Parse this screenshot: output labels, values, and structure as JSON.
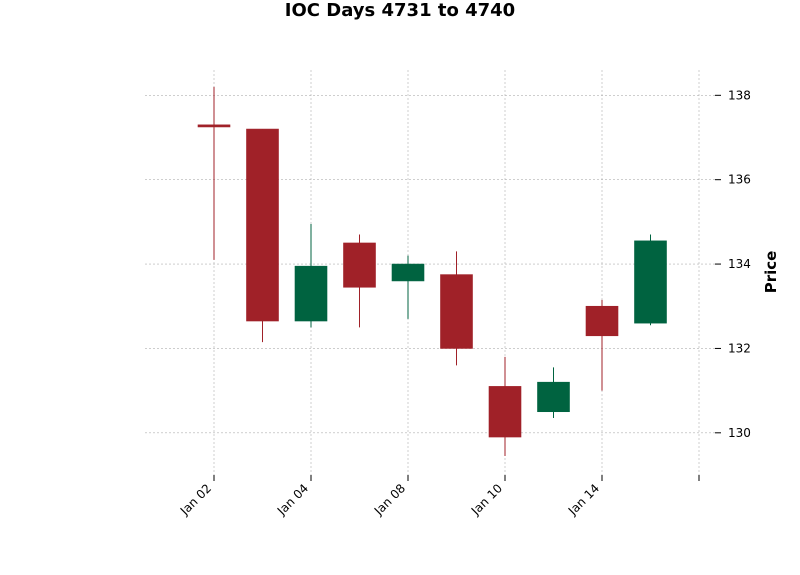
{
  "chart_data": {
    "type": "candlestick",
    "title": "IOC Days 4731 to 4740",
    "xlabel": "",
    "ylabel": "Price",
    "ylim": [
      129.0,
      138.6
    ],
    "y_ticks": [
      130,
      132,
      134,
      136,
      138
    ],
    "x_tick_labels": [
      "Jan 02",
      "Jan 04",
      "Jan 08",
      "Jan 10",
      "Jan 14",
      ""
    ],
    "grid": true,
    "colors": {
      "up": "#006340",
      "down": "#a02128",
      "grid": "#b0b0b0"
    },
    "candles": [
      {
        "open": 137.3,
        "high": 138.2,
        "low": 134.1,
        "close": 137.25
      },
      {
        "open": 137.2,
        "high": 137.2,
        "low": 132.15,
        "close": 132.65
      },
      {
        "open": 132.65,
        "high": 134.95,
        "low": 132.5,
        "close": 133.95
      },
      {
        "open": 134.5,
        "high": 134.7,
        "low": 132.5,
        "close": 133.45
      },
      {
        "open": 133.6,
        "high": 134.2,
        "low": 132.7,
        "close": 134.0
      },
      {
        "open": 133.75,
        "high": 134.3,
        "low": 131.6,
        "close": 132.0
      },
      {
        "open": 131.1,
        "high": 131.8,
        "low": 129.45,
        "close": 129.9
      },
      {
        "open": 130.5,
        "high": 131.55,
        "low": 130.35,
        "close": 131.2
      },
      {
        "open": 133.0,
        "high": 133.15,
        "low": 131.0,
        "close": 132.3
      },
      {
        "open": 132.6,
        "high": 134.7,
        "low": 132.55,
        "close": 134.55
      }
    ]
  }
}
